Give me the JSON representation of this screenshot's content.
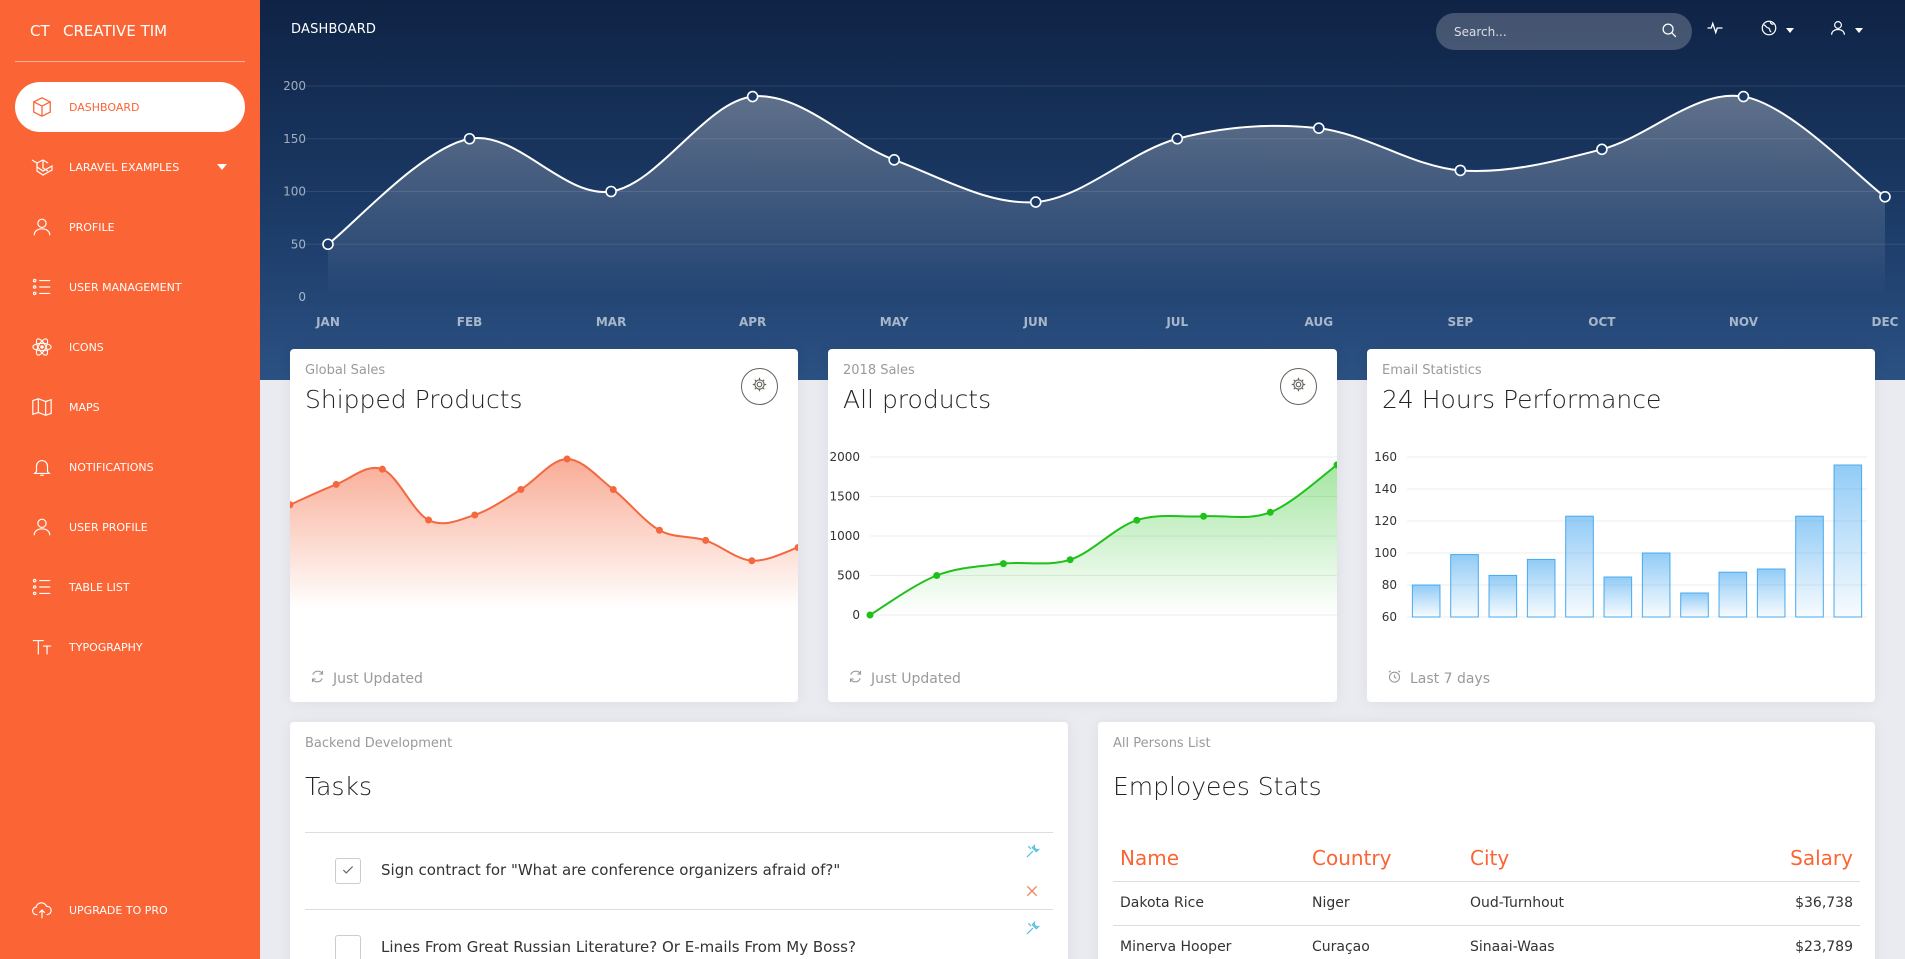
{
  "sidebar": {
    "logo_mini": "CT",
    "logo_text": "CREATIVE TIM",
    "items": [
      {
        "label": "DASHBOARD"
      },
      {
        "label": "LARAVEL EXAMPLES"
      },
      {
        "label": "PROFILE"
      },
      {
        "label": "USER MANAGEMENT"
      },
      {
        "label": "ICONS"
      },
      {
        "label": "MAPS"
      },
      {
        "label": "NOTIFICATIONS"
      },
      {
        "label": "USER PROFILE"
      },
      {
        "label": "TABLE LIST"
      },
      {
        "label": "TYPOGRAPHY"
      }
    ],
    "upgrade": "UPGRADE TO PRO"
  },
  "header": {
    "brand": "DASHBOARD",
    "search_placeholder": "Search..."
  },
  "colors": {
    "sidebar": "#fb6434",
    "header": "#1b3a66",
    "orange_line": "#f4683f",
    "green_line": "#1fc01a",
    "blue_bar": "#49a9f0"
  },
  "main_chart": {
    "chart_data": {
      "type": "line",
      "categories": [
        "JAN",
        "FEB",
        "MAR",
        "APR",
        "MAY",
        "JUN",
        "JUL",
        "AUG",
        "SEP",
        "OCT",
        "NOV",
        "DEC"
      ],
      "values": [
        50,
        150,
        100,
        190,
        130,
        90,
        150,
        160,
        120,
        140,
        190,
        95
      ],
      "yticks": [
        0,
        50,
        100,
        150,
        200
      ],
      "ylim": [
        0,
        200
      ]
    }
  },
  "cards": [
    {
      "category": "Global Sales",
      "title": "Shipped Products",
      "footer": "Just Updated",
      "chart_data": {
        "type": "area",
        "values": [
          70,
          90,
          105,
          55,
          60,
          85,
          115,
          85,
          45,
          35,
          15,
          28
        ]
      }
    },
    {
      "category": "2018 Sales",
      "title": "All products",
      "footer": "Just Updated",
      "chart_data": {
        "type": "area",
        "x": [
          0,
          1,
          2,
          3,
          4,
          5,
          6,
          7
        ],
        "values": [
          0,
          500,
          650,
          700,
          1200,
          1250,
          1300,
          1900
        ],
        "yticks": [
          0,
          500,
          1000,
          1500,
          2000
        ],
        "ylim": [
          0,
          2000
        ]
      }
    },
    {
      "category": "Email Statistics",
      "title": "24 Hours Performance",
      "footer": "Last 7 days",
      "chart_data": {
        "type": "bar",
        "values": [
          80,
          99,
          86,
          96,
          123,
          85,
          100,
          75,
          88,
          90,
          123,
          155
        ],
        "yticks": [
          60,
          80,
          100,
          120,
          140,
          160
        ],
        "ylim": [
          60,
          160
        ]
      }
    }
  ],
  "tasks": {
    "category": "Backend Development",
    "title": "Tasks",
    "items": [
      {
        "text": "Sign contract for \"What are conference organizers afraid of?\"",
        "checked": true
      },
      {
        "text": "Lines From Great Russian Literature? Or E-mails From My Boss?",
        "checked": false
      }
    ]
  },
  "employees": {
    "category": "All Persons List",
    "title": "Employees Stats",
    "headers": [
      "Name",
      "Country",
      "City",
      "Salary"
    ],
    "rows": [
      [
        "Dakota Rice",
        "Niger",
        "Oud-Turnhout",
        "$36,738"
      ],
      [
        "Minerva Hooper",
        "Curaçao",
        "Sinaai-Waas",
        "$23,789"
      ]
    ]
  }
}
